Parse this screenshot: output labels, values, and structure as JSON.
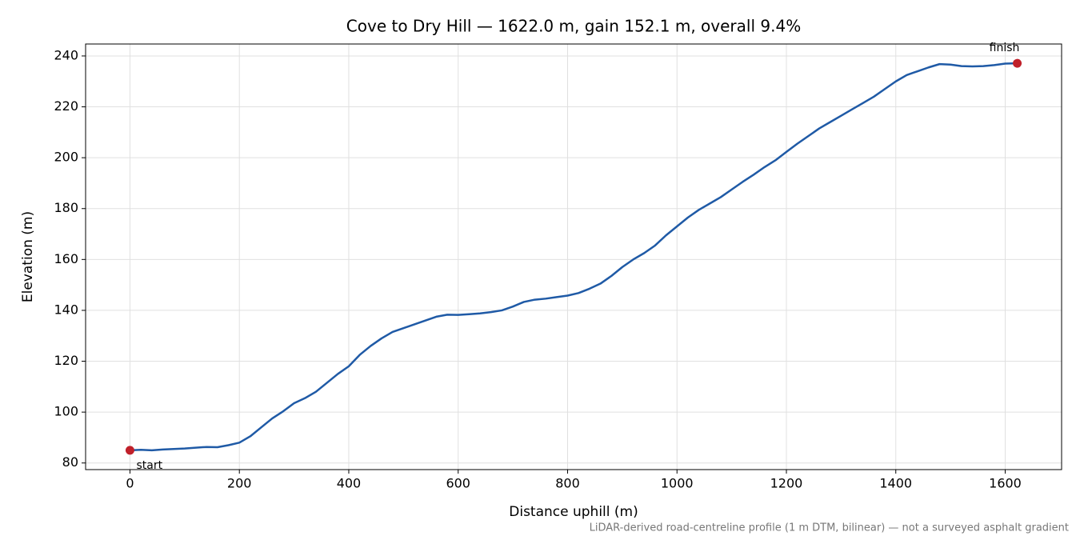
{
  "chart_data": {
    "type": "line",
    "title": "Cove to Dry Hill — 1622.0 m, gain 152.1 m, overall 9.4%",
    "xlabel": "Distance uphill (m)",
    "ylabel": "Elevation (m)",
    "footnote": "LiDAR-derived road-centreline profile (1 m DTM, bilinear) — not a surveyed asphalt gradient",
    "x": [
      0,
      20,
      40,
      60,
      80,
      100,
      120,
      140,
      160,
      180,
      200,
      220,
      240,
      260,
      280,
      300,
      320,
      340,
      360,
      380,
      400,
      420,
      440,
      460,
      480,
      500,
      520,
      540,
      560,
      580,
      600,
      620,
      640,
      660,
      680,
      700,
      720,
      740,
      760,
      780,
      800,
      820,
      840,
      860,
      880,
      900,
      920,
      940,
      960,
      980,
      1000,
      1020,
      1040,
      1060,
      1080,
      1100,
      1120,
      1140,
      1160,
      1180,
      1200,
      1220,
      1240,
      1260,
      1280,
      1300,
      1320,
      1340,
      1360,
      1380,
      1400,
      1420,
      1440,
      1460,
      1480,
      1500,
      1520,
      1540,
      1560,
      1580,
      1600,
      1622
    ],
    "series": [
      {
        "name": "Elevation",
        "color": "#1f5aa6",
        "values": [
          85,
          85.2,
          85,
          85.3,
          85.5,
          85.7,
          86,
          86.3,
          86.2,
          87,
          88,
          90.5,
          94,
          97.5,
          100.3,
          103.5,
          105.5,
          108,
          111.5,
          115,
          118,
          122.5,
          126,
          129,
          131.5,
          133,
          134.5,
          136,
          137.5,
          138.3,
          138.2,
          138.5,
          138.8,
          139.3,
          140,
          141.5,
          143.3,
          144.2,
          144.6,
          145.2,
          145.8,
          146.8,
          148.5,
          150.5,
          153.5,
          157,
          160,
          162.5,
          165.5,
          169.5,
          173,
          176.5,
          179.5,
          182,
          184.5,
          187.5,
          190.5,
          193.3,
          196.3,
          199,
          202.3,
          205.5,
          208.5,
          211.5,
          214,
          216.5,
          219,
          221.5,
          224,
          227,
          230,
          232.5,
          234,
          235.5,
          236.8,
          236.6,
          236,
          235.9,
          236,
          236.4,
          237,
          237.1
        ]
      }
    ],
    "markers": [
      {
        "label": "start",
        "x": 0,
        "y": 85
      },
      {
        "label": "finish",
        "x": 1622,
        "y": 237.1
      }
    ],
    "marker_color": "#c0202a",
    "xlim": [
      -81.1,
      1703.1
    ],
    "ylim": [
      77.4,
      244.7
    ],
    "xticks": [
      0,
      200,
      400,
      600,
      800,
      1000,
      1200,
      1400,
      1600
    ],
    "yticks": [
      80,
      100,
      120,
      140,
      160,
      180,
      200,
      220,
      240
    ],
    "grid": true
  }
}
